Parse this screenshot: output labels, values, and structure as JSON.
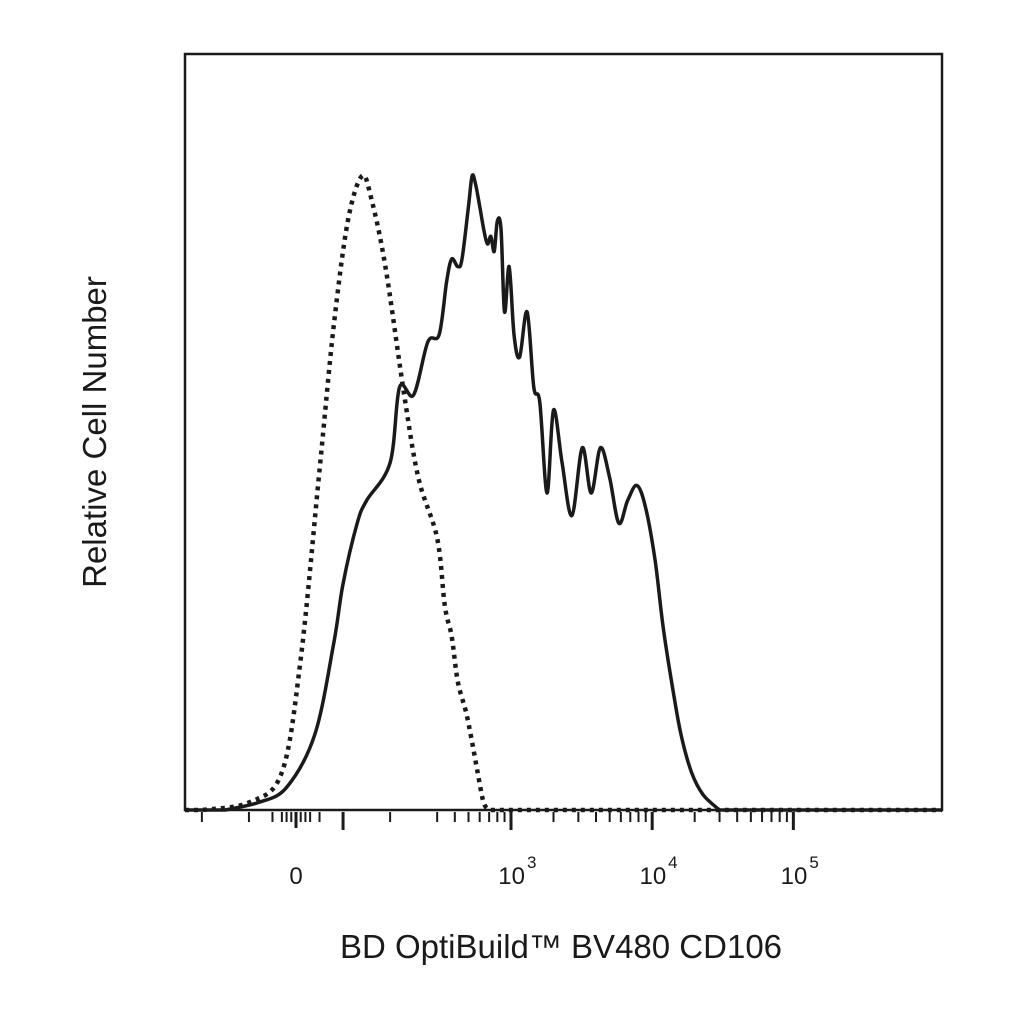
{
  "chart_data": {
    "type": "area",
    "title": "",
    "xlabel": "BD OptiBuild™ BV480 CD106",
    "ylabel": "Relative Cell Number",
    "x_scale": "biexponential",
    "x_range": [
      -300,
      150000
    ],
    "y_range": [
      0,
      1
    ],
    "grid": false,
    "legend": "none",
    "x_tick_labels": [
      {
        "value": 0,
        "base": "0",
        "exp": ""
      },
      {
        "value": 1000,
        "base": "10",
        "exp": "3"
      },
      {
        "value": 10000,
        "base": "10",
        "exp": "4"
      },
      {
        "value": 100000,
        "base": "10",
        "exp": "5"
      }
    ],
    "series": [
      {
        "style": "dotted",
        "color": "#1a1a1a",
        "points": [
          [
            -200,
            0.0
          ],
          [
            -100,
            0.01
          ],
          [
            -30,
            0.05
          ],
          [
            10,
            0.2
          ],
          [
            50,
            0.45
          ],
          [
            80,
            0.64
          ],
          [
            110,
            0.78
          ],
          [
            140,
            0.84
          ],
          [
            160,
            0.81
          ],
          [
            190,
            0.72
          ],
          [
            230,
            0.55
          ],
          [
            260,
            0.44
          ],
          [
            300,
            0.36
          ],
          [
            340,
            0.27
          ],
          [
            380,
            0.23
          ],
          [
            420,
            0.17
          ],
          [
            480,
            0.13
          ],
          [
            530,
            0.09
          ],
          [
            580,
            0.05
          ],
          [
            640,
            0.01
          ],
          [
            700,
            0.0
          ]
        ]
      },
      {
        "style": "solid",
        "color": "#1a1a1a",
        "points": [
          [
            -150,
            0.0
          ],
          [
            -80,
            0.01
          ],
          [
            -20,
            0.03
          ],
          [
            40,
            0.1
          ],
          [
            80,
            0.22
          ],
          [
            100,
            0.3
          ],
          [
            130,
            0.38
          ],
          [
            150,
            0.41
          ],
          [
            200,
            0.46
          ],
          [
            220,
            0.56
          ],
          [
            250,
            0.55
          ],
          [
            280,
            0.62
          ],
          [
            310,
            0.63
          ],
          [
            350,
            0.7
          ],
          [
            380,
            0.73
          ],
          [
            420,
            0.72
          ],
          [
            450,
            0.73
          ],
          [
            500,
            0.8
          ],
          [
            530,
            0.84
          ],
          [
            560,
            0.83
          ],
          [
            600,
            0.8
          ],
          [
            640,
            0.77
          ],
          [
            680,
            0.75
          ],
          [
            720,
            0.76
          ],
          [
            760,
            0.74
          ],
          [
            800,
            0.78
          ],
          [
            850,
            0.77
          ],
          [
            900,
            0.66
          ],
          [
            970,
            0.72
          ],
          [
            1050,
            0.63
          ],
          [
            1150,
            0.6
          ],
          [
            1300,
            0.66
          ],
          [
            1450,
            0.56
          ],
          [
            1600,
            0.54
          ],
          [
            1800,
            0.42
          ],
          [
            2000,
            0.53
          ],
          [
            2300,
            0.46
          ],
          [
            2700,
            0.39
          ],
          [
            3200,
            0.48
          ],
          [
            3700,
            0.42
          ],
          [
            4300,
            0.48
          ],
          [
            5000,
            0.44
          ],
          [
            5800,
            0.38
          ],
          [
            6700,
            0.41
          ],
          [
            7800,
            0.43
          ],
          [
            9000,
            0.4
          ],
          [
            10500,
            0.33
          ],
          [
            12000,
            0.24
          ],
          [
            14000,
            0.16
          ],
          [
            16000,
            0.1
          ],
          [
            19000,
            0.05
          ],
          [
            23000,
            0.02
          ],
          [
            30000,
            0.0
          ]
        ]
      }
    ]
  }
}
